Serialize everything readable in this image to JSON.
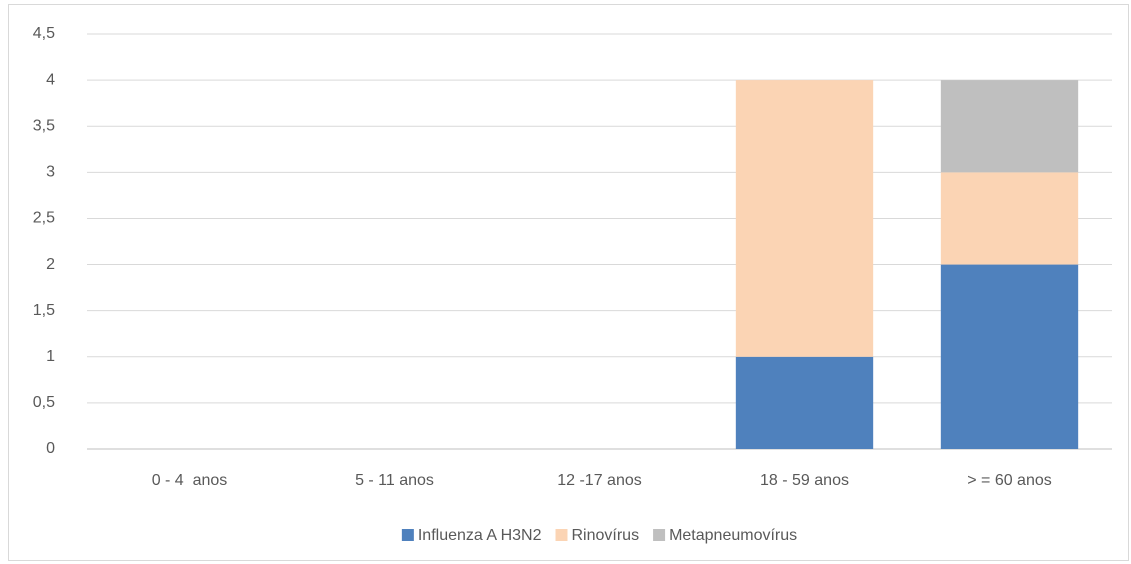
{
  "chart_data": {
    "type": "stacked_bar",
    "categories": [
      "0 - 4  anos",
      "5 - 11 anos",
      "12 -17 anos",
      "18 - 59 anos",
      "> = 60 anos"
    ],
    "series": [
      {
        "name": "Influenza A H3N2",
        "color": "#4f81bd",
        "values": [
          0,
          0,
          0,
          1,
          2
        ]
      },
      {
        "name": "Rinovírus",
        "color": "#fbd4b4",
        "values": [
          0,
          0,
          0,
          3,
          1
        ]
      },
      {
        "name": "Metapneumovírus",
        "color": "#bfbfbf",
        "values": [
          0,
          0,
          0,
          0,
          1
        ]
      }
    ],
    "ylim": [
      0,
      4.5
    ],
    "yticks": [
      0,
      {
        "value": 0.5,
        "label": "0,5"
      },
      1,
      {
        "value": 1.5,
        "label": "1,5"
      },
      2,
      {
        "value": 2.5,
        "label": "2,5"
      },
      3,
      {
        "value": 3.5,
        "label": "3,5"
      },
      4,
      {
        "value": 4.5,
        "label": "4,5"
      }
    ],
    "grid": true,
    "legend": "bottom"
  }
}
